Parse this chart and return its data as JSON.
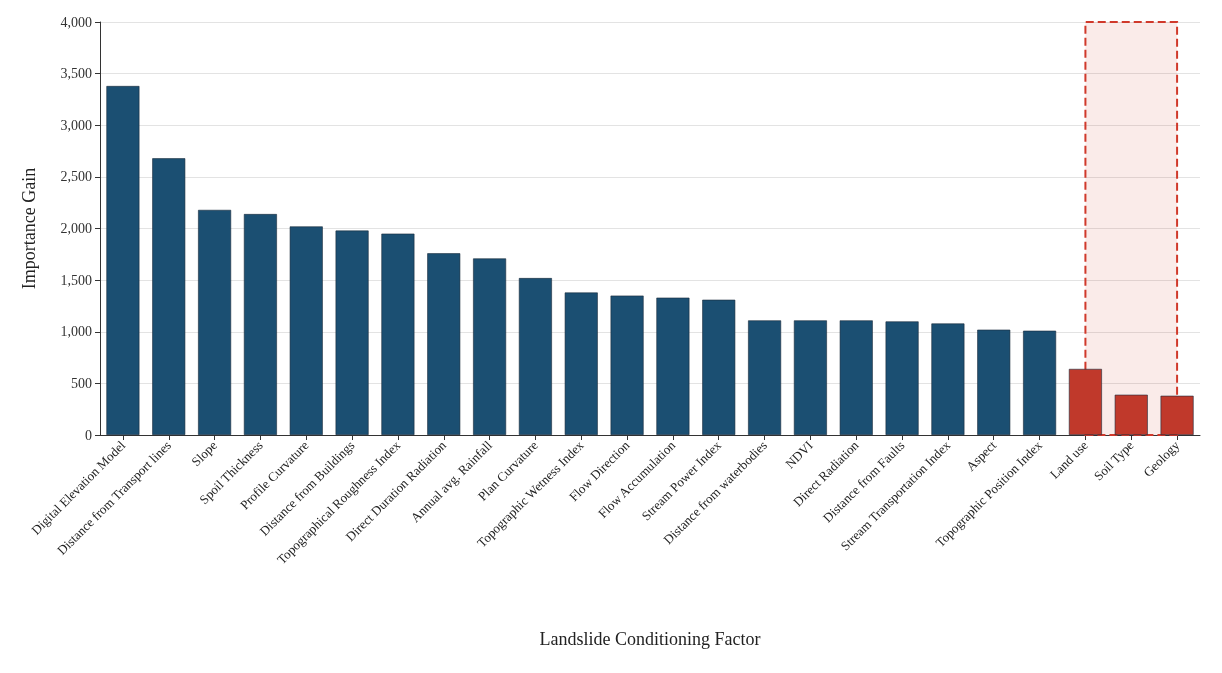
{
  "chart_data": {
    "type": "bar",
    "xlabel": "Landslide Conditioning Factor",
    "ylabel": "Importance Gain",
    "categories": [
      "Digital Elevation Model",
      "Distance from Transport lines",
      "Slope",
      "Spoil Thickness",
      "Profile Curvature",
      "Distance from Buildings",
      "Topographical Roughness Index",
      "Direct Duration Radiation",
      "Annual avg. Rainfall",
      "Plan Curvature",
      "Topographic Wetness Index",
      "Flow Direction",
      "Flow Accumulation",
      "Stream Power Index",
      "Distance from waterbodies",
      "NDVI",
      "Direct Radiation",
      "Distance from Faults",
      "Stream Transportation Index",
      "Aspect",
      "Topographic Position Index",
      "Land use",
      "Soil Type",
      "Geology"
    ],
    "values": [
      3380,
      2680,
      2180,
      2140,
      2020,
      1980,
      1950,
      1760,
      1710,
      1520,
      1380,
      1350,
      1330,
      1310,
      1110,
      1110,
      1110,
      1100,
      1080,
      1020,
      1010,
      640,
      390,
      380
    ],
    "colors": [
      "#1b4f72",
      "#1b4f72",
      "#1b4f72",
      "#1b4f72",
      "#1b4f72",
      "#1b4f72",
      "#1b4f72",
      "#1b4f72",
      "#1b4f72",
      "#1b4f72",
      "#1b4f72",
      "#1b4f72",
      "#1b4f72",
      "#1b4f72",
      "#1b4f72",
      "#1b4f72",
      "#1b4f72",
      "#1b4f72",
      "#1b4f72",
      "#1b4f72",
      "#1b4f72",
      "#c0392b",
      "#c0392b",
      "#c0392b"
    ],
    "ylim": [
      0,
      4000
    ],
    "yticks": [
      0,
      500,
      {
        "value": 1000,
        "label": "1,000"
      },
      {
        "value": 1500,
        "label": "1,500"
      },
      {
        "value": 2000,
        "label": "2,000"
      },
      {
        "value": 2500,
        "label": "2,500"
      },
      {
        "value": 3000,
        "label": "3,000"
      },
      {
        "value": 3500,
        "label": "3,500"
      },
      {
        "value": 4000,
        "label": "4,000"
      }
    ],
    "bands": [
      {
        "axis": "x",
        "from": "Land use",
        "to": "Geology",
        "color": "#d0392b"
      }
    ],
    "grid": "y"
  }
}
